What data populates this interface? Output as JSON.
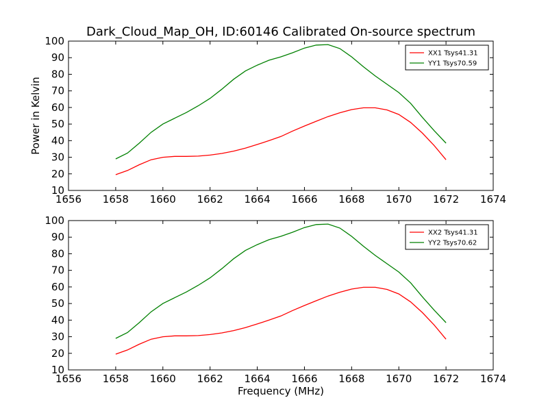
{
  "figure": {
    "title": "Dark_Cloud_Map_OH, ID:60146 Calibrated On-source spectrum"
  },
  "chart_data": [
    {
      "type": "line",
      "title": "Dark_Cloud_Map_OH, ID:60146 Calibrated On-source spectrum",
      "xlabel": "",
      "ylabel": "Power in Kelvin",
      "xlim": [
        1656,
        1674
      ],
      "ylim": [
        10,
        100
      ],
      "xticks": [
        1656,
        1658,
        1660,
        1662,
        1664,
        1666,
        1668,
        1670,
        1672,
        1674
      ],
      "yticks": [
        10,
        20,
        30,
        40,
        50,
        60,
        70,
        80,
        90,
        100
      ],
      "legend_position": "top-right",
      "series": [
        {
          "name": "XX1 Tsys41.31",
          "color": "#ff0000",
          "x": [
            1658,
            1658.5,
            1659,
            1659.5,
            1660,
            1660.5,
            1661,
            1661.5,
            1662,
            1662.5,
            1663,
            1663.5,
            1664,
            1664.5,
            1665,
            1665.5,
            1666,
            1666.5,
            1667,
            1667.5,
            1668,
            1668.5,
            1669,
            1669.5,
            1670,
            1670.5,
            1671,
            1671.5,
            1672
          ],
          "y": [
            19.5,
            22,
            25.5,
            28.5,
            30,
            30.5,
            30.5,
            30.7,
            31.3,
            32.3,
            33.7,
            35.5,
            37.7,
            40,
            42.5,
            45.8,
            48.8,
            51.7,
            54.5,
            56.8,
            58.7,
            59.8,
            59.8,
            58.5,
            55.8,
            51,
            44.5,
            37,
            28.5
          ]
        },
        {
          "name": "YY1 Tsys70.59",
          "color": "#008000",
          "x": [
            1658,
            1658.5,
            1659,
            1659.5,
            1660,
            1660.5,
            1661,
            1661.5,
            1662,
            1662.5,
            1663,
            1663.5,
            1664,
            1664.5,
            1665,
            1665.5,
            1666,
            1666.5,
            1667,
            1667.5,
            1668,
            1668.5,
            1669,
            1669.5,
            1670,
            1670.5,
            1671,
            1671.5,
            1672
          ],
          "y": [
            29,
            32.5,
            38.5,
            45,
            50,
            53.5,
            57,
            61,
            65.5,
            71,
            77,
            82,
            85.5,
            88.5,
            90.5,
            93,
            95.8,
            97.6,
            97.9,
            95.5,
            90.5,
            84.5,
            79,
            74,
            69,
            62.5,
            54,
            46,
            38.5
          ]
        }
      ]
    },
    {
      "type": "line",
      "title": "",
      "xlabel": "Frequency (MHz)",
      "ylabel": "",
      "xlim": [
        1656,
        1674
      ],
      "ylim": [
        10,
        100
      ],
      "xticks": [
        1656,
        1658,
        1660,
        1662,
        1664,
        1666,
        1668,
        1670,
        1672,
        1674
      ],
      "yticks": [
        10,
        20,
        30,
        40,
        50,
        60,
        70,
        80,
        90,
        100
      ],
      "legend_position": "top-right",
      "series": [
        {
          "name": "XX2 Tsys41.31",
          "color": "#ff0000",
          "x": [
            1658,
            1658.5,
            1659,
            1659.5,
            1660,
            1660.5,
            1661,
            1661.5,
            1662,
            1662.5,
            1663,
            1663.5,
            1664,
            1664.5,
            1665,
            1665.5,
            1666,
            1666.5,
            1667,
            1667.5,
            1668,
            1668.5,
            1669,
            1669.5,
            1670,
            1670.5,
            1671,
            1671.5,
            1672
          ],
          "y": [
            19.5,
            22,
            25.5,
            28.5,
            30,
            30.5,
            30.5,
            30.7,
            31.3,
            32.3,
            33.7,
            35.5,
            37.7,
            40,
            42.5,
            45.8,
            48.8,
            51.7,
            54.5,
            56.8,
            58.7,
            59.8,
            59.8,
            58.5,
            55.8,
            51,
            44.5,
            37,
            28.5
          ]
        },
        {
          "name": "YY2 Tsys70.62",
          "color": "#008000",
          "x": [
            1658,
            1658.5,
            1659,
            1659.5,
            1660,
            1660.5,
            1661,
            1661.5,
            1662,
            1662.5,
            1663,
            1663.5,
            1664,
            1664.5,
            1665,
            1665.5,
            1666,
            1666.5,
            1667,
            1667.5,
            1668,
            1668.5,
            1669,
            1669.5,
            1670,
            1670.5,
            1671,
            1671.5,
            1672
          ],
          "y": [
            29,
            32.5,
            38.5,
            45,
            50,
            53.5,
            57,
            61,
            65.5,
            71,
            77,
            82,
            85.5,
            88.5,
            90.5,
            93,
            95.8,
            97.6,
            97.9,
            95.5,
            90.5,
            84.5,
            79,
            74,
            69,
            62.5,
            54,
            46,
            38.5
          ]
        }
      ]
    }
  ]
}
